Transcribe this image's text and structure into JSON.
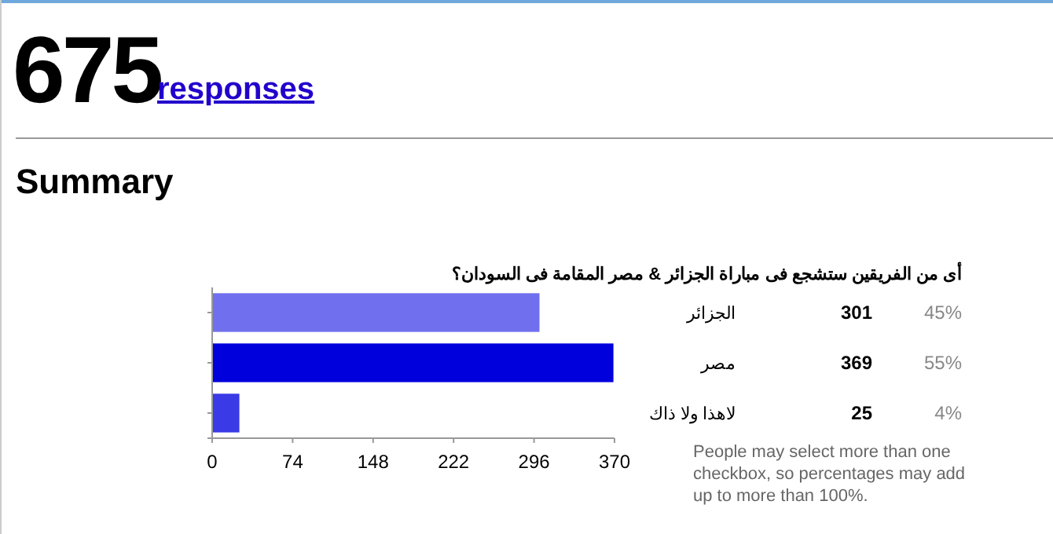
{
  "chart_data": {
    "type": "bar",
    "orientation": "horizontal",
    "title": "أى من الفريقين ستشجع فى مباراة الجزائر & مصر المقامة فى السودان؟",
    "categories": [
      "الجزائر",
      "مصر",
      "لاهذا ولا ذاك"
    ],
    "values": [
      301,
      369,
      25
    ],
    "colors": [
      "#7070ee",
      "#0000dd",
      "#3a3ae6"
    ],
    "data_labels": true,
    "xlim": [
      0,
      370
    ],
    "xticks": [
      0,
      74,
      148,
      222,
      296,
      370
    ],
    "tick_labels": "x",
    "annotations": [
      "675",
      "responses",
      "Summary",
      "45%",
      "55%",
      "4%",
      "People may select more than one checkbox, so percentages may add up to more than 100%."
    ]
  }
}
